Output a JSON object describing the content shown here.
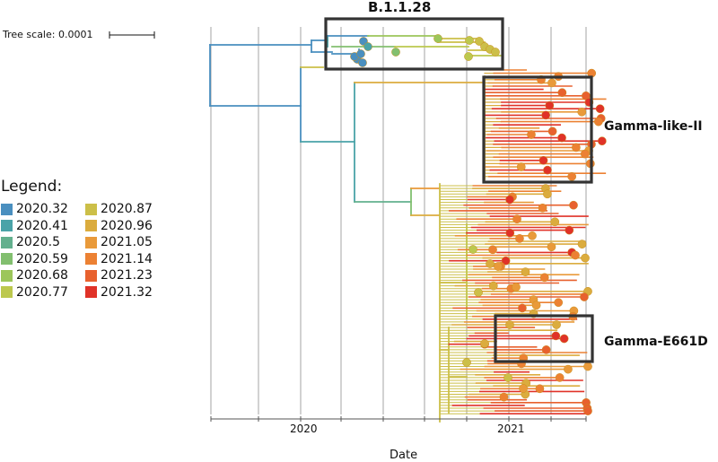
{
  "tree_scale": {
    "label": "Tree scale: 0.0001"
  },
  "legend": {
    "title": "Legend:",
    "items": [
      {
        "label": "2020.32",
        "color": "#4a8fbf"
      },
      {
        "label": "2020.41",
        "color": "#4aa3a8"
      },
      {
        "label": "2020.5",
        "color": "#63b08e"
      },
      {
        "label": "2020.59",
        "color": "#82bf6f"
      },
      {
        "label": "2020.68",
        "color": "#9cc65a"
      },
      {
        "label": "2020.77",
        "color": "#bcc84e"
      },
      {
        "label": "2020.87",
        "color": "#ccbf48"
      },
      {
        "label": "2020.96",
        "color": "#dbac3e"
      },
      {
        "label": "2021.05",
        "color": "#e99a3a"
      },
      {
        "label": "2021.14",
        "color": "#ec8133"
      },
      {
        "label": "2021.23",
        "color": "#e8612e"
      },
      {
        "label": "2021.32",
        "color": "#e03228"
      }
    ]
  },
  "clades": {
    "b1128": "B.1.1.28",
    "gamma_like_ii": "Gamma-like-II",
    "gamma_e661d": "Gamma-E661D"
  },
  "axis": {
    "title": "Date",
    "ticks": [
      {
        "label": "2020",
        "value": 2020.0
      },
      {
        "label": "2021",
        "value": 2021.0
      }
    ]
  },
  "colors": {
    "grid": "#9a9a9a",
    "box": "#333333",
    "axis": "#555555"
  }
}
